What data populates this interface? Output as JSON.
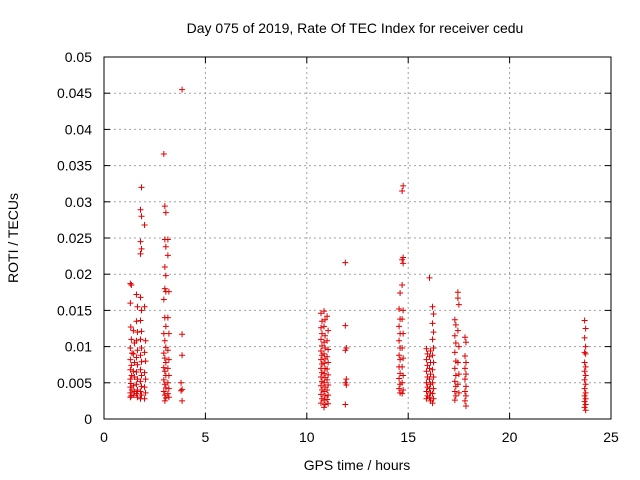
{
  "chart_data": {
    "type": "scatter",
    "title": "Day 075 of 2019, Rate Of TEC Index for receiver cedu",
    "xlabel": "GPS time / hours",
    "ylabel": "ROTI / TECUs",
    "xlim": [
      0,
      25
    ],
    "ylim": [
      0,
      0.05
    ],
    "xticks": [
      0,
      5,
      10,
      15,
      20,
      25
    ],
    "xtick_labels": [
      "0",
      "5",
      "10",
      "15",
      "20",
      "25"
    ],
    "yticks": [
      0,
      0.005,
      0.01,
      0.015,
      0.02,
      0.025,
      0.03,
      0.035,
      0.04,
      0.045,
      0.05
    ],
    "ytick_labels": [
      "0",
      "0.005",
      "0.01",
      "0.015",
      "0.02",
      "0.025",
      "0.03",
      "0.035",
      "0.04",
      "0.045",
      "0.05"
    ],
    "grid": true,
    "marker": "+",
    "marker_color": "#e00000",
    "grid_color": "#a0a0a0",
    "series": [
      {
        "name": "ROTI",
        "points": [
          [
            1.3,
            0.0187
          ],
          [
            1.35,
            0.0185
          ],
          [
            1.3,
            0.016
          ],
          [
            1.32,
            0.0127
          ],
          [
            1.35,
            0.011
          ],
          [
            1.3,
            0.0098
          ],
          [
            1.38,
            0.0091
          ],
          [
            1.3,
            0.0082
          ],
          [
            1.35,
            0.0074
          ],
          [
            1.3,
            0.0068
          ],
          [
            1.36,
            0.006
          ],
          [
            1.3,
            0.0055
          ],
          [
            1.33,
            0.0049
          ],
          [
            1.3,
            0.0044
          ],
          [
            1.37,
            0.004
          ],
          [
            1.3,
            0.0036
          ],
          [
            1.34,
            0.0032
          ],
          [
            1.3,
            0.003
          ],
          [
            1.45,
            0.0122
          ],
          [
            1.5,
            0.0105
          ],
          [
            1.45,
            0.009
          ],
          [
            1.5,
            0.0078
          ],
          [
            1.45,
            0.0066
          ],
          [
            1.5,
            0.0058
          ],
          [
            1.45,
            0.0046
          ],
          [
            1.5,
            0.0038
          ],
          [
            1.47,
            0.0033
          ],
          [
            1.6,
            0.0172
          ],
          [
            1.65,
            0.0155
          ],
          [
            1.6,
            0.0135
          ],
          [
            1.65,
            0.012
          ],
          [
            1.6,
            0.0108
          ],
          [
            1.65,
            0.0095
          ],
          [
            1.6,
            0.0085
          ],
          [
            1.65,
            0.0075
          ],
          [
            1.6,
            0.0065
          ],
          [
            1.65,
            0.0055
          ],
          [
            1.6,
            0.0048
          ],
          [
            1.65,
            0.004
          ],
          [
            1.6,
            0.0035
          ],
          [
            1.65,
            0.003
          ],
          [
            1.85,
            0.032
          ],
          [
            1.8,
            0.0289
          ],
          [
            1.85,
            0.028
          ],
          [
            1.8,
            0.0245
          ],
          [
            1.85,
            0.0235
          ],
          [
            1.8,
            0.0228
          ],
          [
            1.8,
            0.0168
          ],
          [
            1.85,
            0.015
          ],
          [
            1.8,
            0.0136
          ],
          [
            1.85,
            0.0121
          ],
          [
            1.8,
            0.011
          ],
          [
            1.85,
            0.0098
          ],
          [
            1.8,
            0.0088
          ],
          [
            1.85,
            0.0079
          ],
          [
            1.8,
            0.0068
          ],
          [
            1.85,
            0.006
          ],
          [
            1.8,
            0.0052
          ],
          [
            1.85,
            0.0045
          ],
          [
            1.8,
            0.0038
          ],
          [
            1.85,
            0.0033
          ],
          [
            1.8,
            0.0028
          ],
          [
            2.0,
            0.0268
          ],
          [
            2.0,
            0.0155
          ],
          [
            2.05,
            0.0108
          ],
          [
            2.0,
            0.0092
          ],
          [
            2.05,
            0.008
          ],
          [
            2.0,
            0.0064
          ],
          [
            2.05,
            0.0055
          ],
          [
            2.0,
            0.0044
          ],
          [
            2.05,
            0.0036
          ],
          [
            2.0,
            0.0028
          ],
          [
            2.95,
            0.0366
          ],
          [
            3.0,
            0.0294
          ],
          [
            3.05,
            0.0285
          ],
          [
            3.0,
            0.0248
          ],
          [
            3.05,
            0.0238
          ],
          [
            3.0,
            0.021
          ],
          [
            3.05,
            0.0198
          ],
          [
            3.0,
            0.018
          ],
          [
            3.05,
            0.0176
          ],
          [
            2.95,
            0.0165
          ],
          [
            3.0,
            0.014
          ],
          [
            3.05,
            0.0128
          ],
          [
            2.95,
            0.0118
          ],
          [
            3.0,
            0.0108
          ],
          [
            3.05,
            0.0099
          ],
          [
            2.95,
            0.0091
          ],
          [
            3.0,
            0.0084
          ],
          [
            3.05,
            0.0078
          ],
          [
            2.95,
            0.0071
          ],
          [
            3.0,
            0.0066
          ],
          [
            3.05,
            0.006
          ],
          [
            2.95,
            0.0054
          ],
          [
            3.0,
            0.0048
          ],
          [
            3.05,
            0.0043
          ],
          [
            2.95,
            0.0038
          ],
          [
            3.0,
            0.0033
          ],
          [
            3.05,
            0.0029
          ],
          [
            3.0,
            0.0025
          ],
          [
            3.15,
            0.0248
          ],
          [
            3.15,
            0.0226
          ],
          [
            3.2,
            0.0176
          ],
          [
            3.15,
            0.014
          ],
          [
            3.2,
            0.0118
          ],
          [
            3.15,
            0.0095
          ],
          [
            3.2,
            0.0082
          ],
          [
            3.15,
            0.007
          ],
          [
            3.2,
            0.006
          ],
          [
            3.15,
            0.005
          ],
          [
            3.2,
            0.0042
          ],
          [
            3.15,
            0.0035
          ],
          [
            3.2,
            0.003
          ],
          [
            3.85,
            0.0455
          ],
          [
            3.85,
            0.0117
          ],
          [
            3.85,
            0.0088
          ],
          [
            3.8,
            0.005
          ],
          [
            3.85,
            0.0041
          ],
          [
            3.8,
            0.0039
          ],
          [
            3.85,
            0.0025
          ],
          [
            10.7,
            0.0146
          ],
          [
            10.75,
            0.0135
          ],
          [
            10.7,
            0.0126
          ],
          [
            10.75,
            0.0118
          ],
          [
            10.7,
            0.011
          ],
          [
            10.75,
            0.0101
          ],
          [
            10.7,
            0.0094
          ],
          [
            10.75,
            0.0088
          ],
          [
            10.7,
            0.0082
          ],
          [
            10.75,
            0.0076
          ],
          [
            10.7,
            0.007
          ],
          [
            10.75,
            0.0064
          ],
          [
            10.7,
            0.0058
          ],
          [
            10.75,
            0.0052
          ],
          [
            10.7,
            0.0046
          ],
          [
            10.75,
            0.004
          ],
          [
            10.7,
            0.0034
          ],
          [
            10.75,
            0.0028
          ],
          [
            10.7,
            0.0022
          ],
          [
            10.85,
            0.0149
          ],
          [
            10.9,
            0.0137
          ],
          [
            10.85,
            0.0128
          ],
          [
            10.9,
            0.0115
          ],
          [
            10.85,
            0.0106
          ],
          [
            10.9,
            0.0098
          ],
          [
            10.85,
            0.009
          ],
          [
            10.9,
            0.0083
          ],
          [
            10.85,
            0.0077
          ],
          [
            10.9,
            0.007
          ],
          [
            10.85,
            0.0063
          ],
          [
            10.9,
            0.0057
          ],
          [
            10.85,
            0.005
          ],
          [
            10.9,
            0.0044
          ],
          [
            10.85,
            0.0038
          ],
          [
            10.9,
            0.0032
          ],
          [
            10.85,
            0.0026
          ],
          [
            10.9,
            0.002
          ],
          [
            10.85,
            0.0016
          ],
          [
            11.0,
            0.0142
          ],
          [
            11.05,
            0.0122
          ],
          [
            11.0,
            0.0108
          ],
          [
            11.05,
            0.0096
          ],
          [
            11.0,
            0.0086
          ],
          [
            11.05,
            0.0078
          ],
          [
            11.0,
            0.0069
          ],
          [
            11.05,
            0.0061
          ],
          [
            11.0,
            0.0054
          ],
          [
            11.05,
            0.0047
          ],
          [
            11.0,
            0.004
          ],
          [
            11.05,
            0.0033
          ],
          [
            11.0,
            0.0027
          ],
          [
            11.05,
            0.0021
          ],
          [
            11.9,
            0.0216
          ],
          [
            11.9,
            0.0129
          ],
          [
            11.95,
            0.0098
          ],
          [
            11.9,
            0.0095
          ],
          [
            11.95,
            0.0055
          ],
          [
            11.9,
            0.005
          ],
          [
            11.95,
            0.0047
          ],
          [
            11.9,
            0.002
          ],
          [
            14.6,
            0.0174
          ],
          [
            14.55,
            0.0152
          ],
          [
            14.6,
            0.0138
          ],
          [
            14.55,
            0.0128
          ],
          [
            14.6,
            0.0118
          ],
          [
            14.55,
            0.0108
          ],
          [
            14.6,
            0.0098
          ],
          [
            14.55,
            0.0088
          ],
          [
            14.6,
            0.0082
          ],
          [
            14.55,
            0.0072
          ],
          [
            14.6,
            0.0063
          ],
          [
            14.55,
            0.0056
          ],
          [
            14.6,
            0.0048
          ],
          [
            14.55,
            0.0042
          ],
          [
            14.6,
            0.0036
          ],
          [
            14.75,
            0.0322
          ],
          [
            14.7,
            0.0315
          ],
          [
            14.75,
            0.0223
          ],
          [
            14.7,
            0.022
          ],
          [
            14.75,
            0.0215
          ],
          [
            14.7,
            0.0185
          ],
          [
            14.75,
            0.015
          ],
          [
            14.7,
            0.0138
          ],
          [
            14.75,
            0.0118
          ],
          [
            14.7,
            0.0098
          ],
          [
            14.75,
            0.0084
          ],
          [
            14.7,
            0.0072
          ],
          [
            14.75,
            0.006
          ],
          [
            14.7,
            0.005
          ],
          [
            14.75,
            0.004
          ],
          [
            14.7,
            0.0035
          ],
          [
            15.9,
            0.0097
          ],
          [
            15.95,
            0.009
          ],
          [
            15.9,
            0.0082
          ],
          [
            15.95,
            0.0074
          ],
          [
            15.9,
            0.0066
          ],
          [
            15.95,
            0.0058
          ],
          [
            15.9,
            0.005
          ],
          [
            15.95,
            0.0044
          ],
          [
            15.9,
            0.0038
          ],
          [
            15.95,
            0.0032
          ],
          [
            15.9,
            0.0028
          ],
          [
            16.05,
            0.0195
          ],
          [
            16.1,
            0.0094
          ],
          [
            16.05,
            0.0086
          ],
          [
            16.1,
            0.0078
          ],
          [
            16.05,
            0.007
          ],
          [
            16.1,
            0.0062
          ],
          [
            16.05,
            0.0055
          ],
          [
            16.1,
            0.0048
          ],
          [
            16.05,
            0.0042
          ],
          [
            16.1,
            0.0036
          ],
          [
            16.05,
            0.003
          ],
          [
            16.1,
            0.0025
          ],
          [
            16.2,
            0.0155
          ],
          [
            16.25,
            0.0145
          ],
          [
            16.2,
            0.0132
          ],
          [
            16.25,
            0.012
          ],
          [
            16.2,
            0.011
          ],
          [
            16.25,
            0.0098
          ],
          [
            16.2,
            0.0088
          ],
          [
            16.25,
            0.0078
          ],
          [
            16.2,
            0.0068
          ],
          [
            16.25,
            0.0058
          ],
          [
            16.2,
            0.005
          ],
          [
            16.25,
            0.0042
          ],
          [
            16.2,
            0.0035
          ],
          [
            16.25,
            0.0028
          ],
          [
            16.2,
            0.0022
          ],
          [
            17.3,
            0.0137
          ],
          [
            17.35,
            0.013
          ],
          [
            17.3,
            0.0115
          ],
          [
            17.35,
            0.0105
          ],
          [
            17.3,
            0.0092
          ],
          [
            17.35,
            0.008
          ],
          [
            17.3,
            0.007
          ],
          [
            17.35,
            0.006
          ],
          [
            17.3,
            0.0052
          ],
          [
            17.35,
            0.0045
          ],
          [
            17.3,
            0.0038
          ],
          [
            17.35,
            0.0032
          ],
          [
            17.3,
            0.0026
          ],
          [
            17.45,
            0.0175
          ],
          [
            17.45,
            0.0167
          ],
          [
            17.5,
            0.0158
          ],
          [
            17.45,
            0.0122
          ],
          [
            17.5,
            0.01
          ],
          [
            17.45,
            0.0078
          ],
          [
            17.5,
            0.0062
          ],
          [
            17.45,
            0.0048
          ],
          [
            17.5,
            0.0036
          ],
          [
            17.8,
            0.0113
          ],
          [
            17.85,
            0.0106
          ],
          [
            17.8,
            0.0087
          ],
          [
            17.85,
            0.0078
          ],
          [
            17.8,
            0.007
          ],
          [
            17.85,
            0.0062
          ],
          [
            17.8,
            0.0055
          ],
          [
            17.85,
            0.0045
          ],
          [
            17.8,
            0.0038
          ],
          [
            17.85,
            0.0032
          ],
          [
            17.8,
            0.0025
          ],
          [
            17.85,
            0.0018
          ],
          [
            23.7,
            0.0136
          ],
          [
            23.75,
            0.0125
          ],
          [
            23.7,
            0.0112
          ],
          [
            23.75,
            0.01
          ],
          [
            23.7,
            0.0092
          ],
          [
            23.75,
            0.009
          ],
          [
            23.7,
            0.0078
          ],
          [
            23.75,
            0.0072
          ],
          [
            23.7,
            0.0066
          ],
          [
            23.75,
            0.006
          ],
          [
            23.7,
            0.0054
          ],
          [
            23.75,
            0.0048
          ],
          [
            23.7,
            0.0042
          ],
          [
            23.75,
            0.0036
          ],
          [
            23.7,
            0.0032
          ],
          [
            23.75,
            0.0028
          ],
          [
            23.7,
            0.0024
          ],
          [
            23.75,
            0.002
          ],
          [
            23.7,
            0.0016
          ],
          [
            23.75,
            0.0012
          ]
        ]
      }
    ]
  }
}
